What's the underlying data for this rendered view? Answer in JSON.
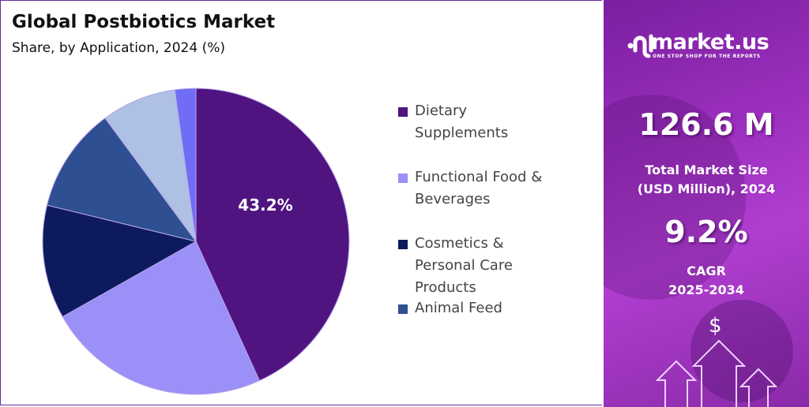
{
  "header": {
    "title": "Global Postbiotics Market",
    "subtitle": "Share, by Application, 2024 (%)"
  },
  "chart_data": {
    "type": "pie",
    "title": "Global Postbiotics Market",
    "subtitle": "Share, by Application, 2024 (%)",
    "start_angle": "top, clockwise",
    "slices": [
      {
        "name": "Dietary Supplements",
        "value": 43.2,
        "color": "#4f1480",
        "label": "43.2%"
      },
      {
        "name": "Functional Food & Beverages",
        "value": 23.6,
        "color": "#9b8ff8"
      },
      {
        "name": "Cosmetics & Personal Care Products",
        "value": 12.0,
        "color": "#0d1a5e"
      },
      {
        "name": "Animal Feed",
        "value": 11.1,
        "color": "#2e4f92"
      },
      {
        "value": 7.9,
        "color": "#aec0e4"
      },
      {
        "value": 2.2,
        "color": "#6f6cf5"
      }
    ],
    "legend": {
      "placement": "right",
      "entries": [
        {
          "label": "Dietary Supplements",
          "color": "#4f1480"
        },
        {
          "label": "Functional Food & Beverages",
          "color": "#9b8ff8"
        },
        {
          "label": "Cosmetics & Personal Care Products",
          "color": "#0d1a5e"
        },
        {
          "label": "Animal Feed",
          "color": "#2e4f92"
        }
      ]
    }
  },
  "sidebar": {
    "brand": "market.us",
    "tagline": "ONE STOP SHOP FOR THE REPORTS",
    "market_size": "126.6 M",
    "market_size_label_1": "Total Market Size",
    "market_size_label_2": "(USD Million), 2024",
    "cagr": "9.2%",
    "cagr_label_1": "CAGR",
    "cagr_label_2": "2025-2034",
    "dollar": "$",
    "icons": [
      "market-us-logo",
      "dollar-icon",
      "arrow-up-icon"
    ]
  }
}
